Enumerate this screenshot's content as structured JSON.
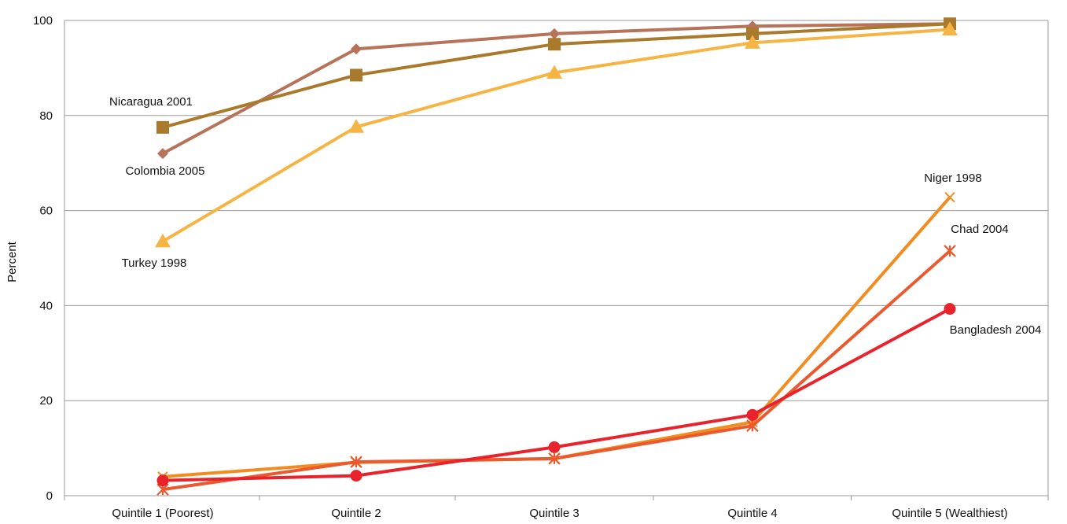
{
  "chart_data": {
    "type": "line",
    "title": "",
    "xlabel": "",
    "ylabel": "Percent",
    "ylim": [
      0,
      100
    ],
    "yticks": [
      0,
      20,
      40,
      60,
      80,
      100
    ],
    "grid": "horizontal",
    "categories": [
      "Quintile 1 (Poorest)",
      "Quintile 2",
      "Quintile 3",
      "Quintile 4",
      "Quintile 5 (Wealthiest)"
    ],
    "series": [
      {
        "name": "Colombia 2005",
        "marker": "diamond",
        "color": "#b7725a",
        "values": [
          72,
          94,
          97.2,
          98.8,
          99.3
        ]
      },
      {
        "name": "Nicaragua 2001",
        "marker": "square",
        "color": "#a97a2c",
        "values": [
          77.5,
          88.5,
          95,
          97.2,
          99.3
        ]
      },
      {
        "name": "Turkey 1998",
        "marker": "triangle",
        "color": "#f6b444",
        "values": [
          53.5,
          77.6,
          89,
          95.3,
          98.1
        ]
      },
      {
        "name": "Niger 1998",
        "marker": "x",
        "color": "#f28c1e",
        "values": [
          4,
          7,
          7.8,
          15.5,
          62.8
        ]
      },
      {
        "name": "Chad 2004",
        "marker": "asterisk",
        "color": "#ea5a2e",
        "values": [
          1.3,
          7.1,
          7.8,
          14.7,
          51.5
        ]
      },
      {
        "name": "Bangladesh 2004",
        "marker": "circle",
        "color": "#e8232b",
        "values": [
          3.2,
          4.2,
          10.2,
          17,
          39.3
        ]
      }
    ]
  }
}
